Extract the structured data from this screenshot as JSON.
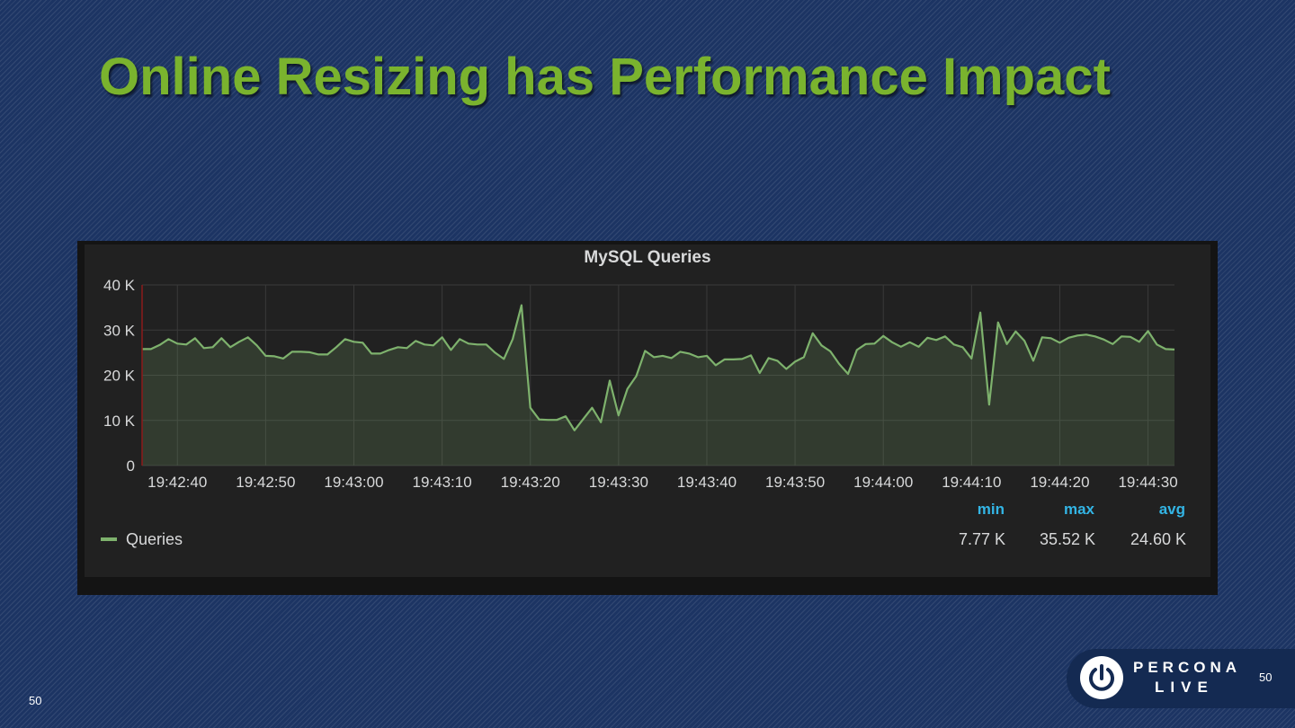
{
  "slide": {
    "title": "Online Resizing has Performance Impact",
    "page_number_left": "50",
    "page_number_right": "50"
  },
  "logo": {
    "line1": "PERCONA",
    "line2": "LIVE"
  },
  "colors": {
    "title": "#7ab32e",
    "series": "#7eb26d",
    "stat_header": "#33b5e5"
  },
  "chart_data": {
    "type": "area",
    "title": "MySQL Queries",
    "xlabel": "",
    "ylabel": "",
    "ylim": [
      0,
      40000
    ],
    "y_ticks": [
      {
        "value": 0,
        "label": "0"
      },
      {
        "value": 10000,
        "label": "10 K"
      },
      {
        "value": 20000,
        "label": "20 K"
      },
      {
        "value": 30000,
        "label": "30 K"
      },
      {
        "value": 40000,
        "label": "40 K"
      }
    ],
    "x_range_seconds": [
      0,
      117
    ],
    "x_ticks": [
      {
        "t": 4,
        "label": "19:42:40"
      },
      {
        "t": 14,
        "label": "19:42:50"
      },
      {
        "t": 24,
        "label": "19:43:00"
      },
      {
        "t": 34,
        "label": "19:43:10"
      },
      {
        "t": 44,
        "label": "19:43:20"
      },
      {
        "t": 54,
        "label": "19:43:30"
      },
      {
        "t": 64,
        "label": "19:43:40"
      },
      {
        "t": 74,
        "label": "19:43:50"
      },
      {
        "t": 84,
        "label": "19:44:00"
      },
      {
        "t": 94,
        "label": "19:44:10"
      },
      {
        "t": 104,
        "label": "19:44:20"
      },
      {
        "t": 114,
        "label": "19:44:30"
      }
    ],
    "grid": true,
    "series": [
      {
        "name": "Queries",
        "x_start": "19:42:36",
        "step_seconds": 1,
        "values": [
          25800,
          25800,
          26700,
          28000,
          27000,
          26800,
          28200,
          26000,
          26200,
          28200,
          26200,
          27400,
          28400,
          26600,
          24300,
          24200,
          23700,
          25200,
          25200,
          25100,
          24600,
          24600,
          26200,
          28000,
          27400,
          27200,
          24800,
          24800,
          25600,
          26200,
          26000,
          27600,
          26800,
          26600,
          28400,
          25600,
          28000,
          27000,
          26800,
          26800,
          25000,
          23600,
          28000,
          35500,
          12800,
          10200,
          10100,
          10100,
          10900,
          7800,
          10300,
          12800,
          9600,
          18800,
          11100,
          17000,
          19800,
          25400,
          24000,
          24300,
          23800,
          25200,
          24800,
          24000,
          24300,
          22200,
          23500,
          23500,
          23600,
          24400,
          20500,
          23800,
          23200,
          21400,
          23000,
          24000,
          29300,
          26600,
          25300,
          22500,
          20300,
          25600,
          26900,
          27000,
          28700,
          27300,
          26300,
          27300,
          26300,
          28300,
          27800,
          28600,
          26800,
          26200,
          23700,
          33900,
          13500,
          31700,
          26900,
          29700,
          27600,
          23200,
          28400,
          28200,
          27200,
          28300,
          28800,
          29000,
          28600,
          27900,
          26900,
          28600,
          28500,
          27400,
          29800,
          26800,
          25800,
          25700
        ]
      }
    ],
    "legend": {
      "placement": "bottom-left",
      "label": "Queries"
    },
    "stats": {
      "headers": [
        "min",
        "max",
        "avg"
      ],
      "values": [
        "7.77 K",
        "35.52 K",
        "24.60 K"
      ]
    }
  }
}
